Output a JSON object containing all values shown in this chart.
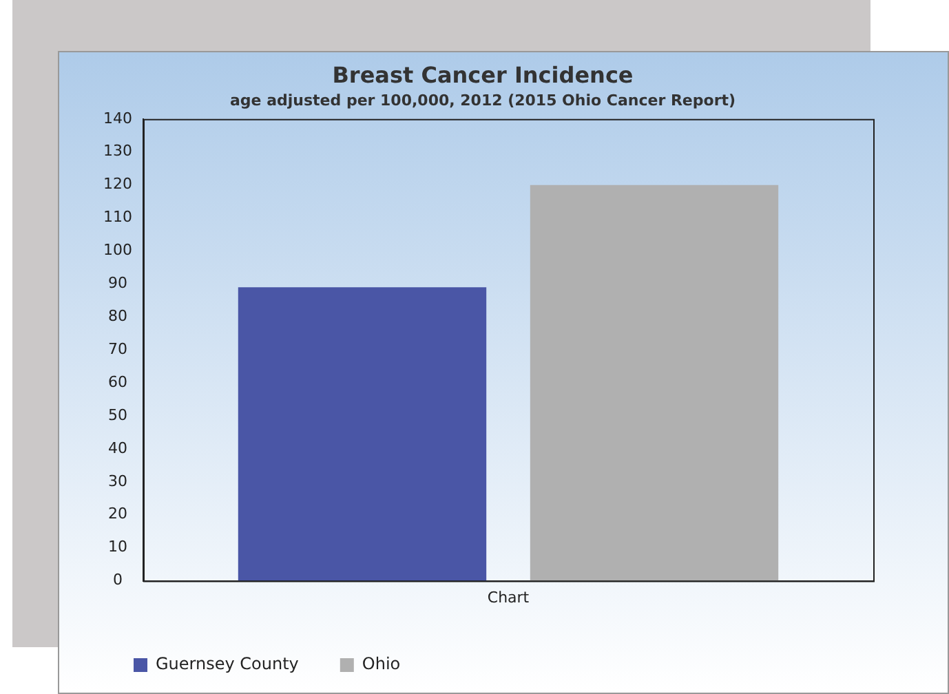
{
  "chart_data": {
    "type": "bar",
    "title": "Breast Cancer Incidence",
    "subtitle": "age adjusted per 100,000, 2012 (2015 Ohio Cancer Report)",
    "categories": [
      "Chart"
    ],
    "series": [
      {
        "name": "Guernsey County",
        "color": "#4a56a6",
        "values": [
          89
        ]
      },
      {
        "name": "Ohio",
        "color": "#b0b0b0",
        "values": [
          120
        ]
      }
    ],
    "ylim": [
      0,
      140
    ],
    "yticks": [
      0,
      10,
      20,
      30,
      40,
      50,
      60,
      70,
      80,
      90,
      100,
      110,
      120,
      130,
      140
    ],
    "grid": false,
    "legend": "bottom left"
  }
}
